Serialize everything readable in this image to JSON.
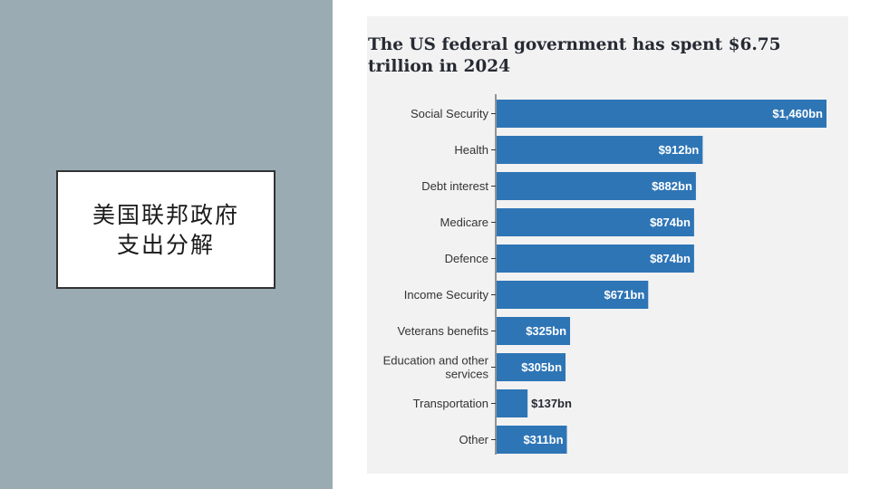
{
  "slide": {
    "title_lines": [
      "美国联邦政府",
      "支出分解"
    ]
  },
  "chart_data": {
    "type": "bar",
    "orientation": "horizontal",
    "title": "The US federal government has spent $6.75 trillion in 2024",
    "unit": "$bn",
    "categories": [
      "Social Security",
      "Health",
      "Debt interest",
      "Medicare",
      "Defence",
      "Income Security",
      "Veterans benefits",
      "Education and other services",
      "Transportation",
      "Other"
    ],
    "category_lines": [
      [
        "Social Security"
      ],
      [
        "Health"
      ],
      [
        "Debt interest"
      ],
      [
        "Medicare"
      ],
      [
        "Defence"
      ],
      [
        "Income Security"
      ],
      [
        "Veterans benefits"
      ],
      [
        "Education and other",
        "services"
      ],
      [
        "Transportation"
      ],
      [
        "Other"
      ]
    ],
    "values": [
      1460,
      912,
      882,
      874,
      874,
      671,
      325,
      305,
      137,
      311
    ],
    "value_labels": [
      "$1,460bn",
      "$912bn",
      "$882bn",
      "$874bn",
      "$874bn",
      "$671bn",
      "$325bn",
      "$305bn",
      "$137bn",
      "$311bn"
    ],
    "xlim": [
      0,
      1460
    ],
    "grid": false,
    "legend": "none",
    "colors": {
      "bar": "#2e75b6",
      "label_inside": "#ffffff",
      "label_outside": "#262a33",
      "axis": "#333333"
    }
  }
}
